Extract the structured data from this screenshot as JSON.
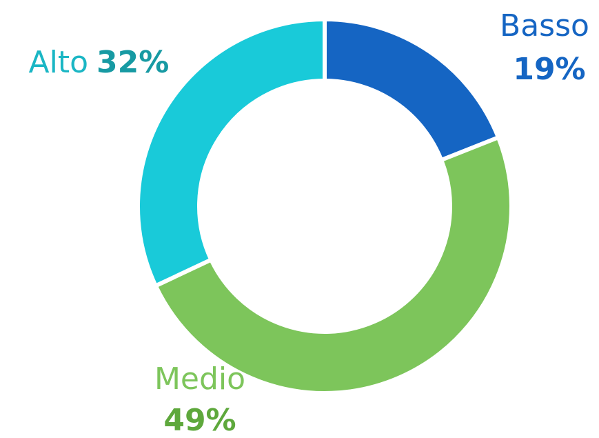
{
  "chart_data": {
    "type": "pie",
    "categories": [
      "Basso",
      "Medio",
      "Alto"
    ],
    "values": [
      19,
      49,
      32
    ],
    "value_labels": [
      "19%",
      "49%",
      "32%"
    ],
    "colors": [
      "#1565c3",
      "#7dc55b",
      "#19cad9"
    ]
  }
}
